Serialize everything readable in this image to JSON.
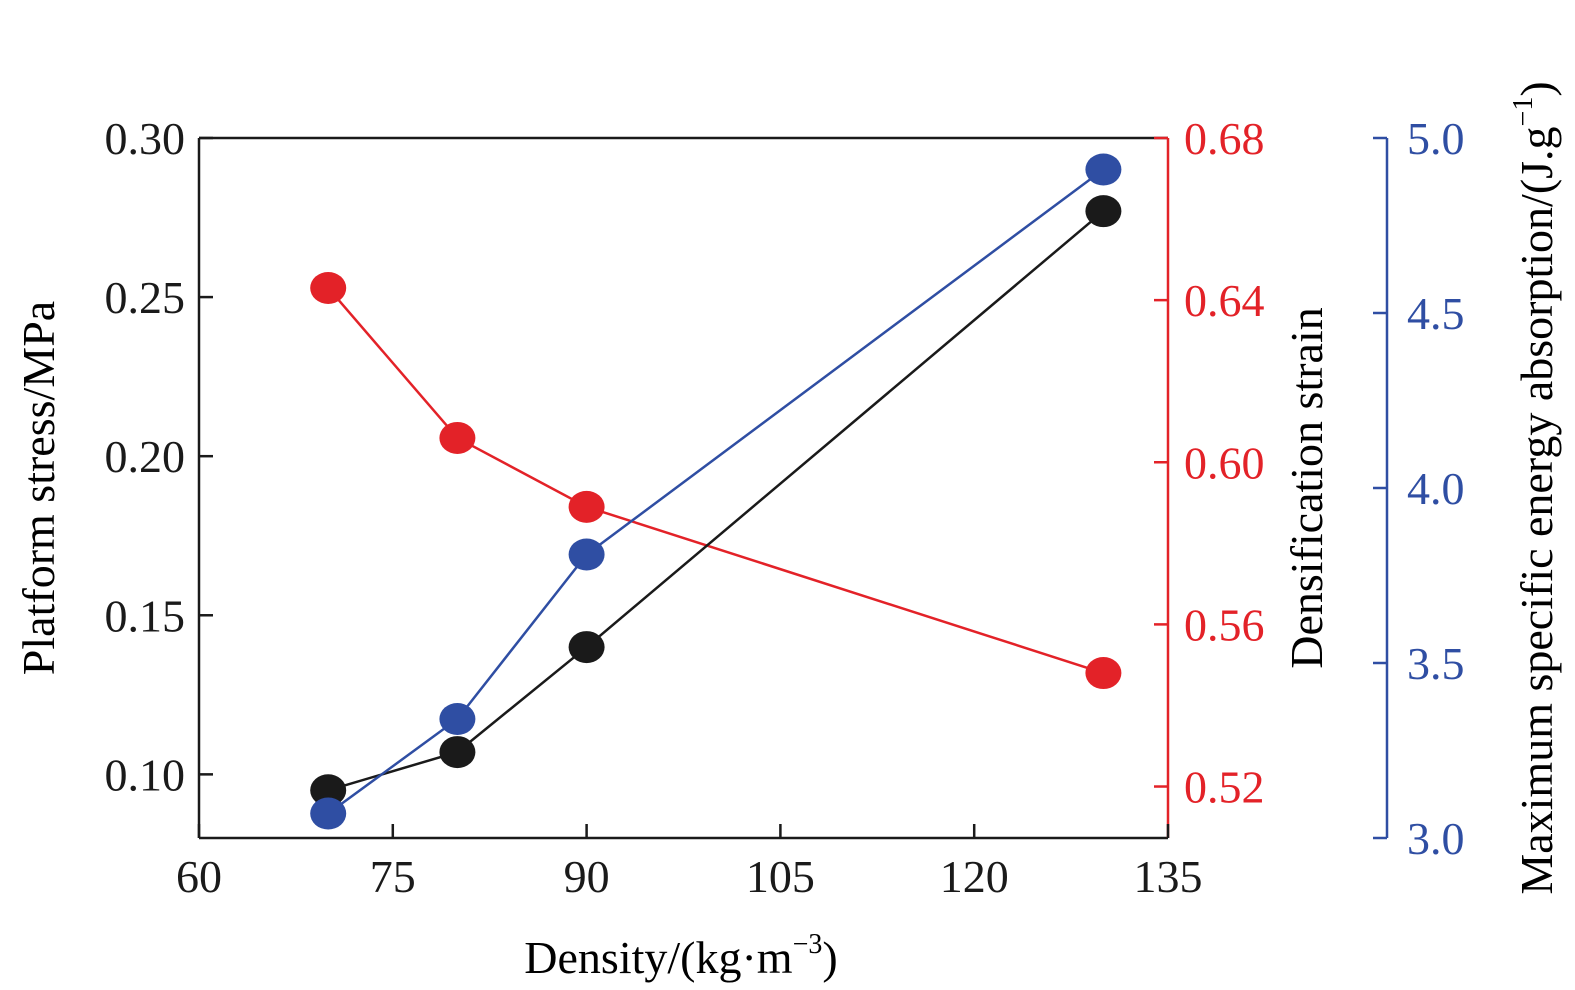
{
  "colors": {
    "platform": "#1a1a1a",
    "densification": "#e32228",
    "energy": "#2f4ea3",
    "axis": "#1a1a1a"
  },
  "chart_data": {
    "type": "line",
    "xlabel_base": "Density/(kg·m",
    "xlabel_sup": "−3",
    "xlabel_end": ")",
    "ylabel_left": "Platform stress/MPa",
    "ylabel_right1": "Densification strain",
    "ylabel_right2_base": "Maximum specific energy absorption/(J.g",
    "ylabel_right2_sup": "−1",
    "ylabel_right2_end": ")",
    "x": [
      70,
      80,
      90,
      130
    ],
    "xlim": [
      60,
      135
    ],
    "xticks": [
      "60",
      "75",
      "90",
      "105",
      "120",
      "135"
    ],
    "xtick_values": [
      60,
      75,
      90,
      105,
      120,
      135
    ],
    "series": [
      {
        "axis": "left",
        "values": [
          0.095,
          0.107,
          0.14,
          0.277
        ],
        "ylim": [
          0.08,
          0.3
        ],
        "ticks": [
          "0.10",
          "0.15",
          "0.20",
          "0.25",
          "0.30"
        ],
        "tick_values": [
          0.1,
          0.15,
          0.2,
          0.25,
          0.3
        ]
      },
      {
        "axis": "right1",
        "values": [
          0.643,
          0.606,
          0.589,
          0.548
        ],
        "ylim": [
          0.5073,
          0.68
        ],
        "ticks": [
          "0.52",
          "0.56",
          "0.60",
          "0.64",
          "0.68"
        ],
        "tick_values": [
          0.52,
          0.56,
          0.6,
          0.64,
          0.68
        ]
      },
      {
        "axis": "right2",
        "values": [
          3.07,
          3.34,
          3.81,
          4.91
        ],
        "ylim": [
          3.0,
          5.0
        ],
        "ticks": [
          "3.0",
          "3.5",
          "4.0",
          "4.5",
          "5.0"
        ],
        "tick_values": [
          3.0,
          3.5,
          4.0,
          4.5,
          5.0
        ]
      }
    ]
  }
}
